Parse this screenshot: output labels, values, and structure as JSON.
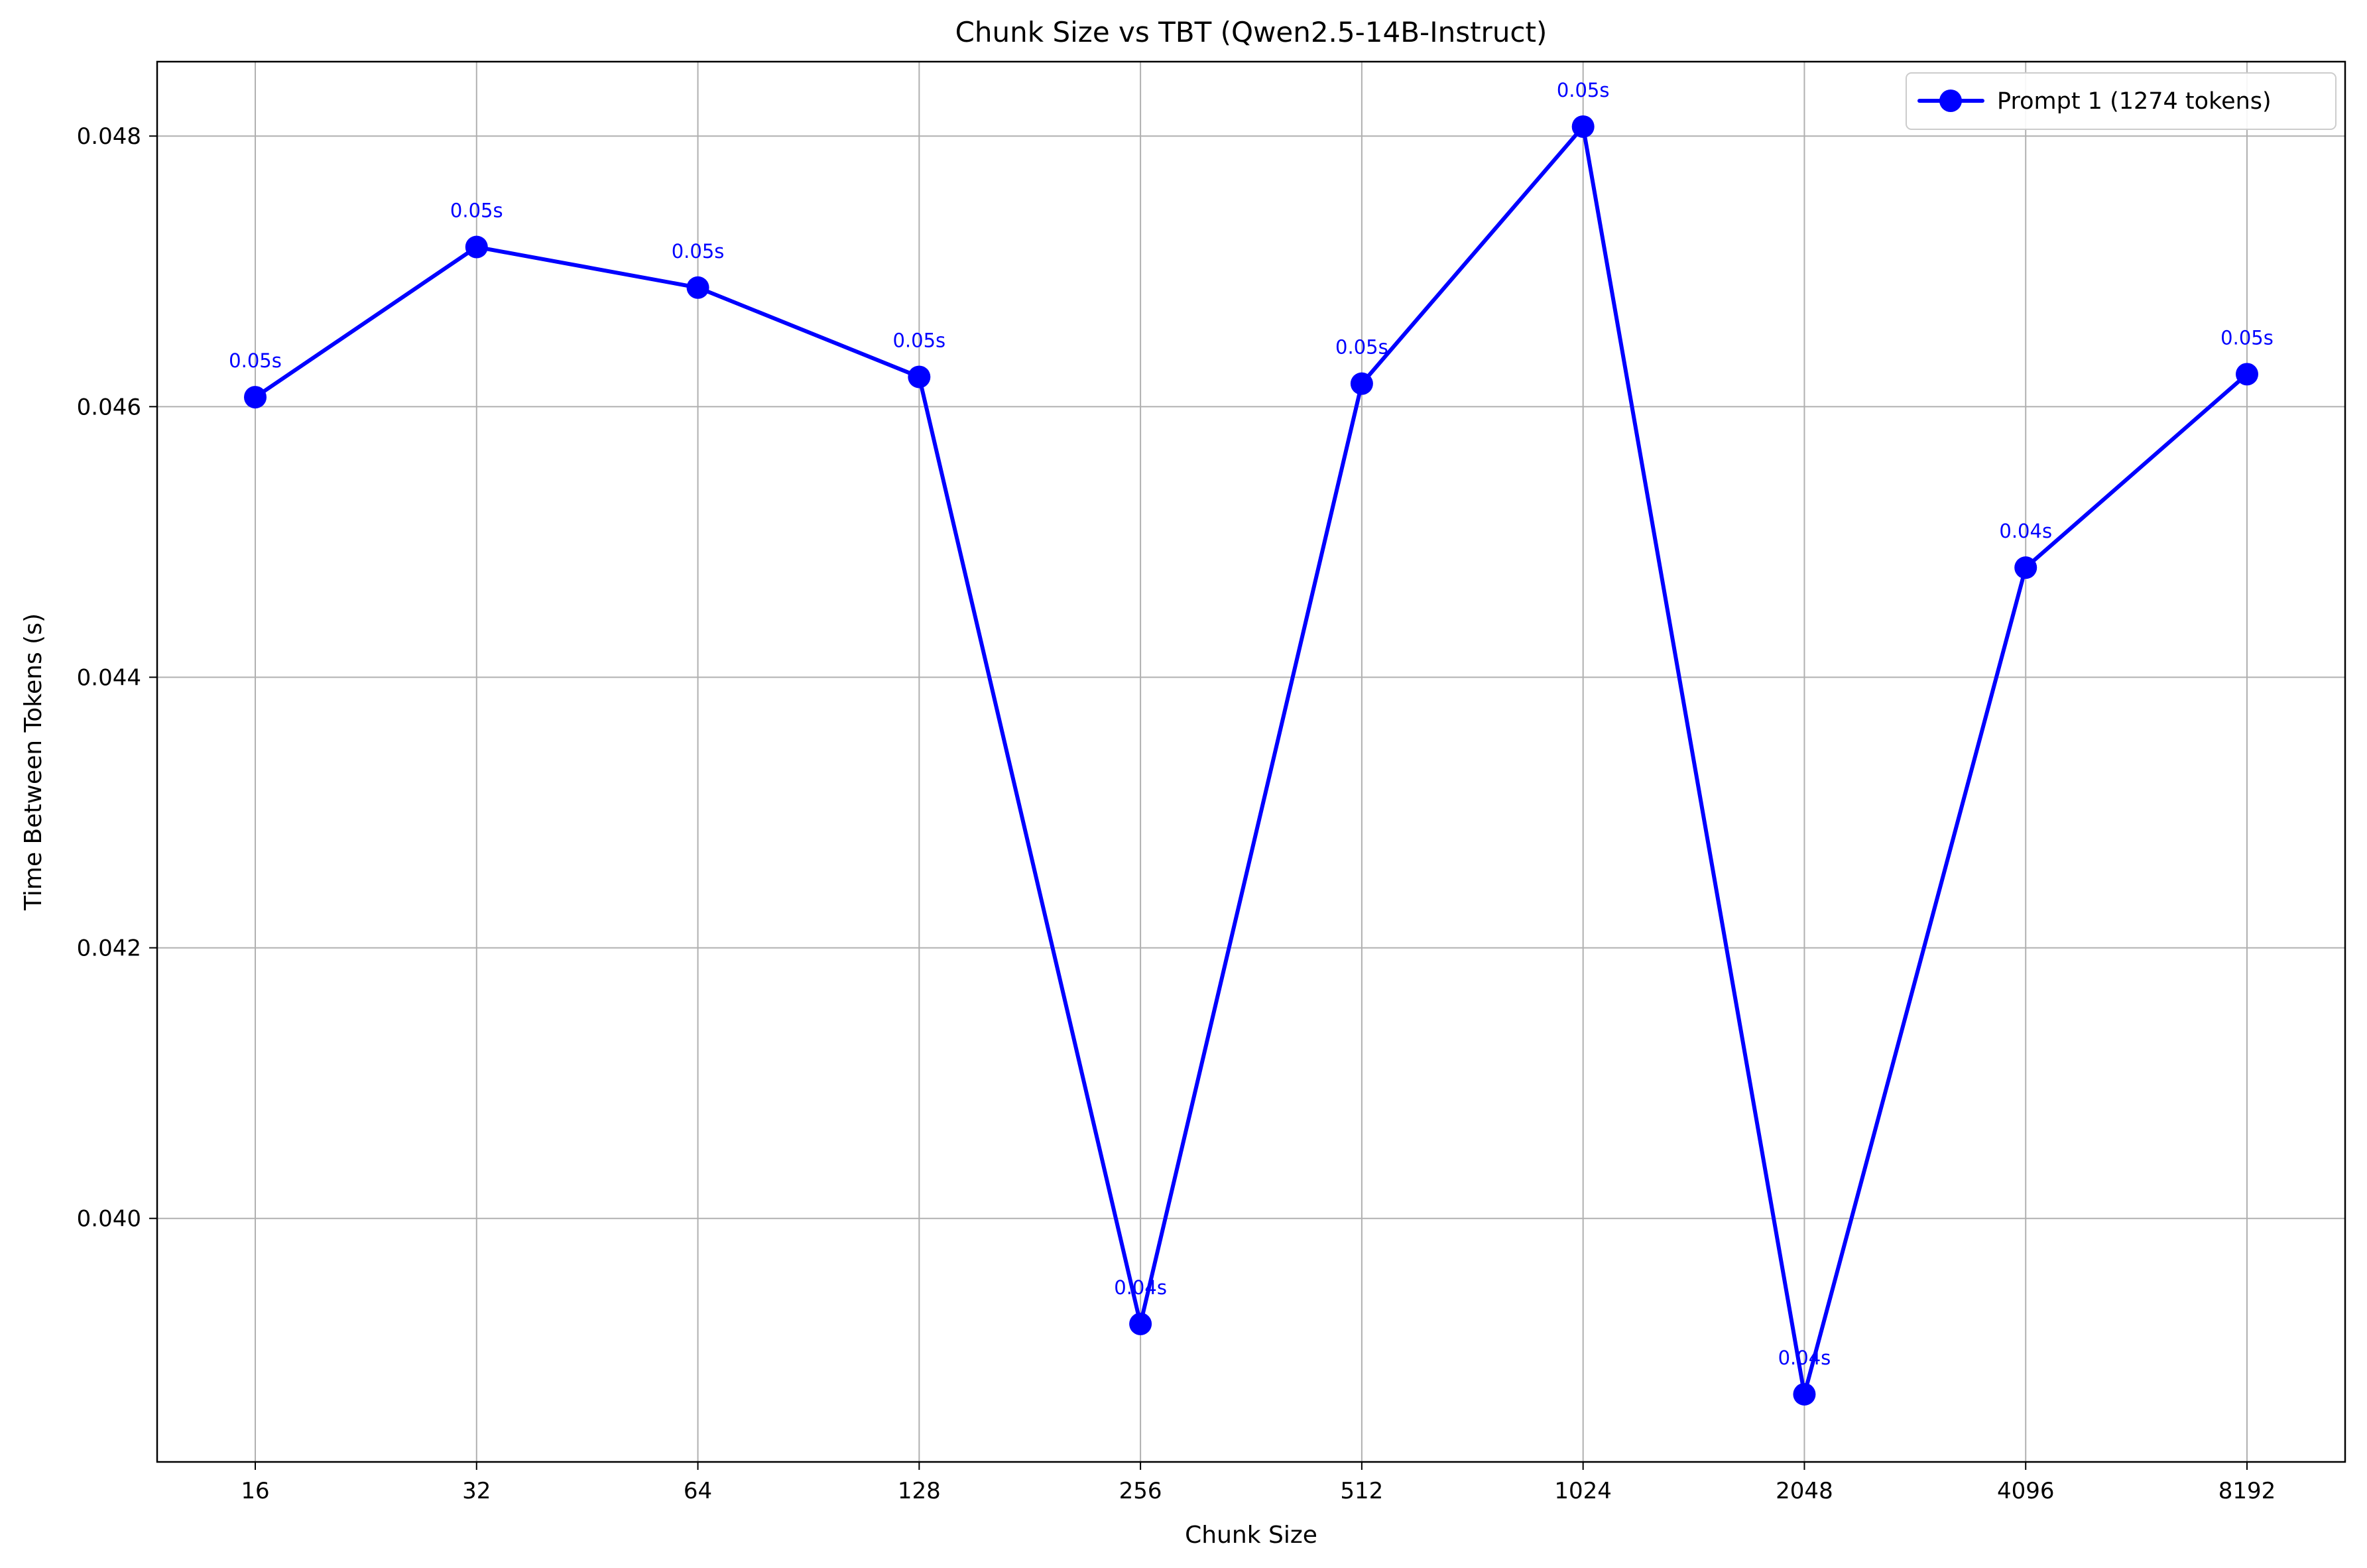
{
  "chart_data": {
    "type": "line",
    "title": "Chunk Size vs TBT (Qwen2.5-14B-Instruct)",
    "xlabel": "Chunk Size",
    "ylabel": "Time Between Tokens (s)",
    "categories": [
      "16",
      "32",
      "64",
      "128",
      "256",
      "512",
      "1024",
      "2048",
      "4096",
      "8192"
    ],
    "series": [
      {
        "name": "Prompt 1 (1274 tokens)",
        "color": "#0000ff",
        "values": [
          0.04607,
          0.04718,
          0.04688,
          0.04622,
          0.03922,
          0.04617,
          0.04807,
          0.0387,
          0.04481,
          0.04624
        ],
        "labels": [
          "0.05s",
          "0.05s",
          "0.05s",
          "0.05s",
          "0.04s",
          "0.05s",
          "0.05s",
          "0.04s",
          "0.04s",
          "0.05s"
        ]
      }
    ],
    "ylim": [
      0.0382,
      0.04855
    ],
    "yticks": [
      0.04,
      0.042,
      0.044,
      0.046,
      0.048
    ],
    "ytick_labels": [
      "0.040",
      "0.042",
      "0.044",
      "0.046",
      "0.048"
    ],
    "grid": true,
    "legend_position": "top-right"
  }
}
